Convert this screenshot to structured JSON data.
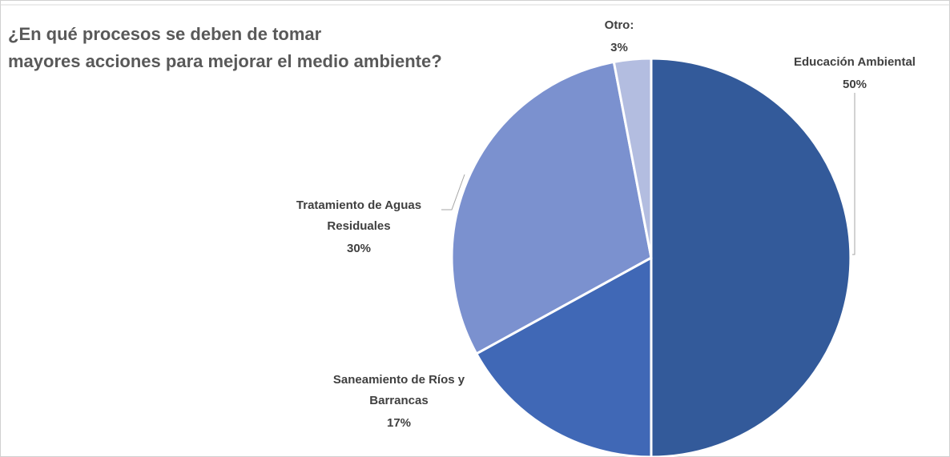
{
  "chart_data": {
    "type": "pie",
    "title": "¿En qué procesos se deben de tomar mayores acciones para mejorar el medio ambiente?",
    "categories": [
      "Educación Ambiental",
      "Saneamiento de Ríos y Barrancas",
      "Tratamiento de Aguas Residuales",
      "Otro:"
    ],
    "values": [
      50,
      17,
      30,
      3
    ],
    "value_labels": [
      "50%",
      "17%",
      "30%",
      "3%"
    ],
    "colors": [
      "#335a9a",
      "#4068b6",
      "#7b91cf",
      "#b3bde0"
    ]
  }
}
